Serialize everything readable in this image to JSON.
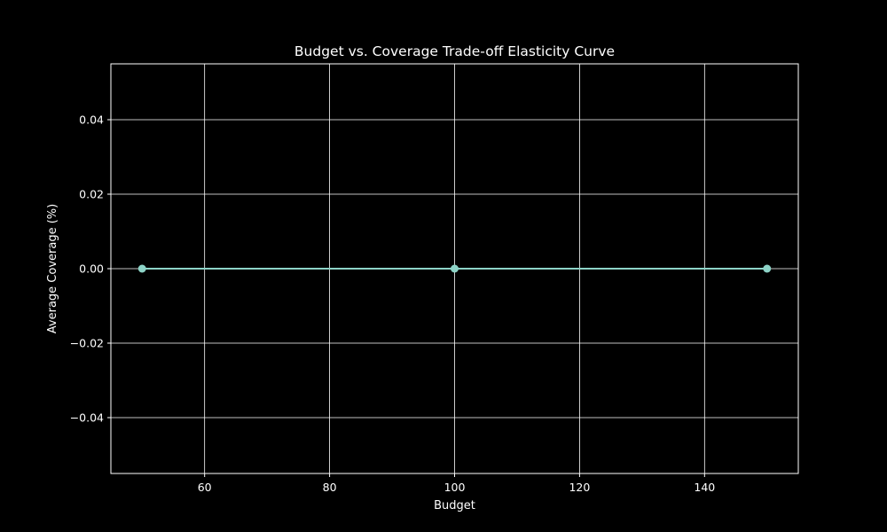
{
  "chart_data": {
    "type": "line",
    "title": "Budget vs. Coverage Trade-off Elasticity Curve",
    "xlabel": "Budget",
    "ylabel": "Average Coverage (%)",
    "xlim": [
      45,
      155
    ],
    "ylim": [
      -0.055,
      0.055
    ],
    "grid": true,
    "x_ticks": [
      60,
      80,
      100,
      120,
      140
    ],
    "y_ticks": [
      -0.04,
      -0.02,
      0.0,
      0.02,
      0.04
    ],
    "x_tick_labels": [
      "60",
      "80",
      "100",
      "120",
      "140"
    ],
    "y_tick_labels": [
      "−0.04",
      "−0.02",
      "0.00",
      "0.02",
      "0.04"
    ],
    "series": [
      {
        "name": "Average Coverage",
        "color": "#8dd3c7",
        "x": [
          50,
          100,
          150
        ],
        "y": [
          0,
          0,
          0
        ]
      }
    ],
    "colors": {
      "background": "#000000",
      "axes": "#ffffff",
      "grid": "#ffffff"
    }
  }
}
